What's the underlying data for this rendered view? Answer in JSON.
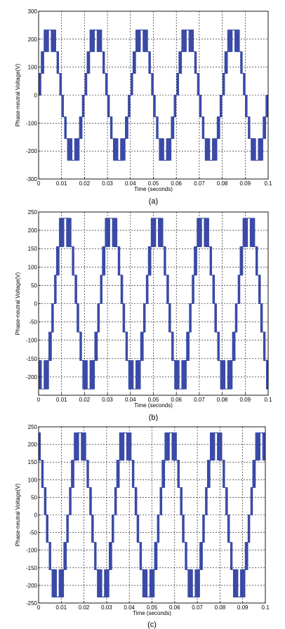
{
  "chart_data": [
    {
      "type": "line",
      "caption": "(a)",
      "xlabel": "Time (seconds)",
      "ylabel": "Phase-neutral Voltage(V)",
      "xlim": [
        0,
        0.1
      ],
      "ylim": [
        -300,
        300
      ],
      "xticks": [
        0,
        0.01,
        0.02,
        0.03,
        0.04,
        0.05,
        0.06,
        0.07,
        0.08,
        0.09,
        0.1
      ],
      "xtick_labels": [
        "0",
        "0.01",
        "0.02",
        "0.03",
        "0.04",
        "0.05",
        "0.06",
        "0.07",
        "0.08",
        "0.09",
        "0.1"
      ],
      "yticks": [
        -300,
        -200,
        -100,
        0,
        100,
        200,
        300
      ],
      "ytick_labels": [
        "-300",
        "-200",
        "-100",
        "0",
        "100",
        "200",
        "300"
      ],
      "grid": true,
      "series": [
        {
          "frequency_hz": 50,
          "amplitude_v": 233,
          "phase_deg": 0,
          "levels": 7
        }
      ],
      "colors": {
        "trace": "#3a4aa6"
      }
    },
    {
      "type": "line",
      "caption": "(b)",
      "xlabel": "Time (seconds)",
      "ylabel": "Phase-neutral Voltage(V)",
      "xlim": [
        0,
        0.1
      ],
      "ylim": [
        -250,
        250
      ],
      "xticks": [
        0,
        0.01,
        0.02,
        0.03,
        0.04,
        0.05,
        0.06,
        0.07,
        0.08,
        0.09,
        0.1
      ],
      "xtick_labels": [
        "0",
        "0.01",
        "0.02",
        "0.03",
        "0.04",
        "0.05",
        "0.06",
        "0.07",
        "0.08",
        "0.09",
        "0.1"
      ],
      "yticks": [
        -200,
        -150,
        -100,
        -50,
        0,
        50,
        100,
        150,
        200,
        250
      ],
      "ytick_labels": [
        "-200",
        "-150",
        "-100",
        "-50",
        "0",
        "50",
        "100",
        "150",
        "200",
        "250"
      ],
      "grid": true,
      "series": [
        {
          "frequency_hz": 50,
          "amplitude_v": 233,
          "phase_deg": -120,
          "levels": 7
        }
      ],
      "colors": {
        "trace": "#3a4aa6"
      }
    },
    {
      "type": "line",
      "caption": "(c)",
      "xlabel": "Time (seconds)",
      "ylabel": "Phase-neutral Voltage(V)",
      "xlim": [
        0,
        0.1
      ],
      "ylim": [
        -250,
        250
      ],
      "xticks": [
        0,
        0.01,
        0.02,
        0.03,
        0.04,
        0.05,
        0.06,
        0.07,
        0.08,
        0.09,
        0.1
      ],
      "xtick_labels": [
        "0",
        "0.01",
        "0.02",
        "0.03",
        "0.04",
        "0.05",
        "0.06",
        "0.07",
        "0.08",
        "0.09",
        "0.1"
      ],
      "yticks": [
        -250,
        -200,
        -150,
        -100,
        -50,
        0,
        50,
        100,
        150,
        200,
        250
      ],
      "ytick_labels": [
        "-250",
        "-200",
        "-150",
        "-100",
        "-50",
        "0",
        "50",
        "100",
        "150",
        "200",
        "250"
      ],
      "grid": true,
      "series": [
        {
          "frequency_hz": 50,
          "amplitude_v": 233,
          "phase_deg": 120,
          "levels": 7
        }
      ],
      "colors": {
        "trace": "#3a4aa6"
      }
    }
  ]
}
